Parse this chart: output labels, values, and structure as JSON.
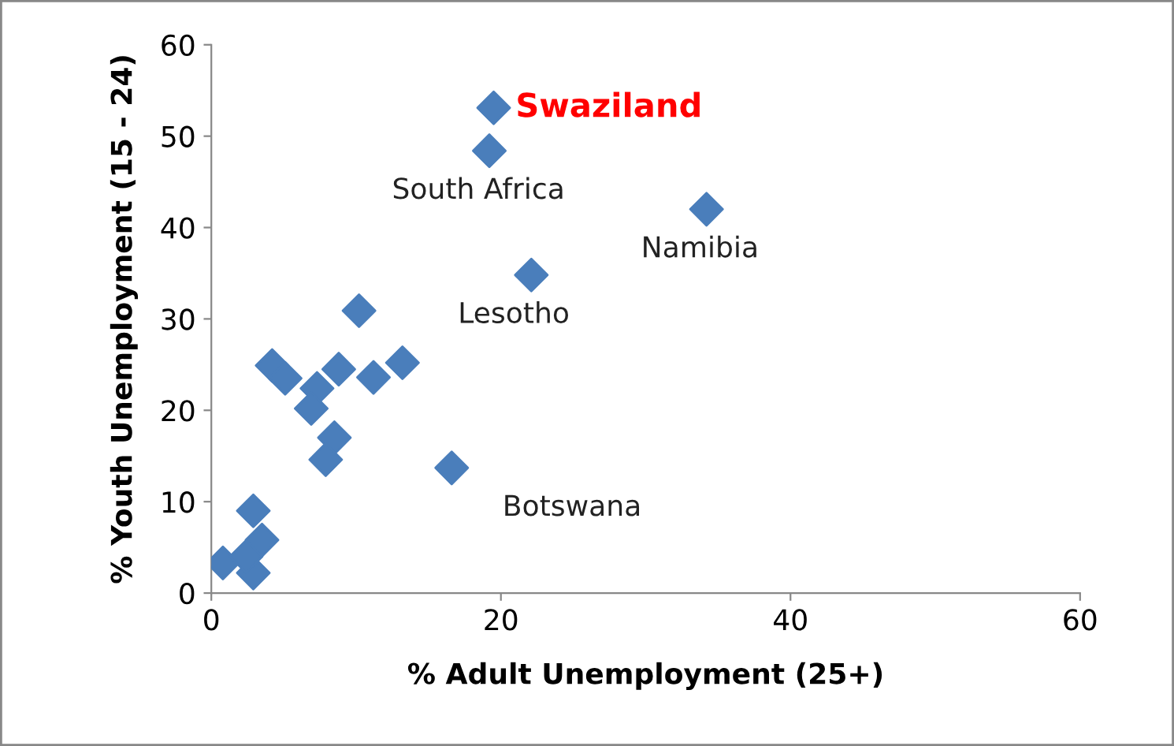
{
  "chart_data": {
    "type": "scatter",
    "xlabel": "% Adult Unemployment (25+)",
    "ylabel": "% Youth Unemployment (15 - 24)",
    "marker": "diamond",
    "grid": false,
    "series": [
      {
        "color": "#4a7ebb",
        "x": [
          19.5,
          19.2,
          34.2,
          22.1,
          16.6,
          10.2,
          4.2,
          5.1,
          8.8,
          11.2,
          13.2,
          7.3,
          6.9,
          8.5,
          7.9,
          2.9,
          3.5,
          0.8,
          1.8,
          2.9,
          2.4
        ],
        "values": [
          53.1,
          48.4,
          42.0,
          34.8,
          13.7,
          30.9,
          24.9,
          23.5,
          24.5,
          23.6,
          25.2,
          22.4,
          20.2,
          17.0,
          14.6,
          9.0,
          5.8,
          3.3,
          null,
          2.2,
          4.0
        ]
      }
    ],
    "xlim": [
      0,
      60
    ],
    "ylim": [
      0,
      60
    ],
    "xticks": [
      0,
      20,
      40,
      60
    ],
    "yticks": [
      0,
      10,
      20,
      30,
      40,
      50,
      60
    ],
    "annotations": [
      {
        "text": "Swaziland",
        "x": 19.5,
        "y": 53.1
      },
      {
        "text": "South Africa",
        "x": 19.2,
        "y": 48.4
      },
      {
        "text": "Namibia",
        "x": 34.2,
        "y": 42.0
      },
      {
        "text": "Lesotho",
        "x": 22.1,
        "y": 34.8
      },
      {
        "text": "Botswana",
        "x": 16.6,
        "y": 13.7
      }
    ]
  }
}
